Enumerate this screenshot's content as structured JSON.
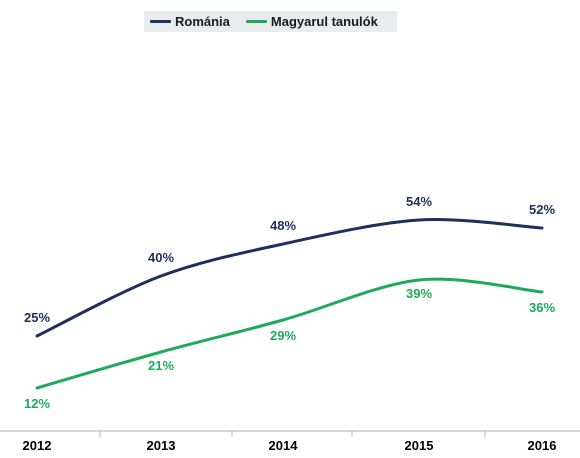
{
  "chart_data": {
    "type": "line",
    "categories": [
      "2012",
      "2013",
      "2014",
      "2015",
      "2016"
    ],
    "series": [
      {
        "name": "Románia",
        "values": [
          25,
          40,
          48,
          54,
          52
        ],
        "labels": [
          "25%",
          "40%",
          "48%",
          "54%",
          "52%"
        ],
        "color": "#1f2f5c"
      },
      {
        "name": "Magyarul tanulók",
        "values": [
          12,
          21,
          29,
          39,
          36
        ],
        "labels": [
          "12%",
          "21%",
          "29%",
          "39%",
          "36%"
        ],
        "color": "#1faa59"
      }
    ],
    "ylim": [
      0,
      100
    ],
    "grid": false,
    "legend_position": "top-center"
  }
}
